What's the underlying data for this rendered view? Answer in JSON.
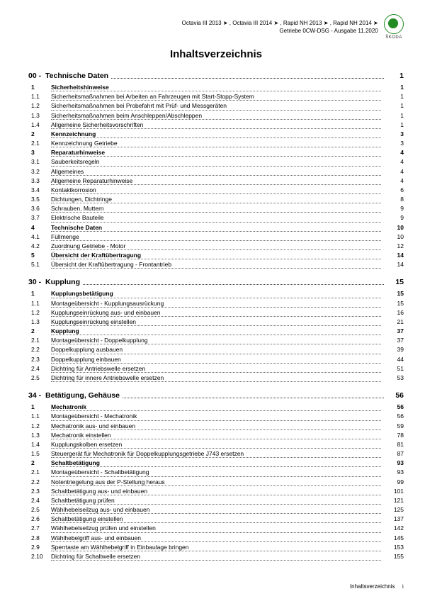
{
  "header": {
    "line1": "Octavia III 2013 ➤ , Octavia III 2014 ➤ , Rapid NH 2013 ➤ , Rapid NH 2014 ➤",
    "line2": "Getriebe 0CW-DSG - Ausgabe 11.2020",
    "brand": "ŠKODA"
  },
  "title": "Inhaltsverzeichnis",
  "footer": {
    "label": "Inhaltsverzeichnis",
    "page": "i"
  },
  "sections": [
    {
      "num": "00 -",
      "title": "Technische Daten",
      "page": "1",
      "items": [
        {
          "l": 1,
          "n": "1",
          "t": "Sicherheitshinweise",
          "p": "1"
        },
        {
          "l": 2,
          "n": "1.1",
          "t": "Sicherheitsmaßnahmen bei Arbeiten an Fahrzeugen mit Start-Stopp-System",
          "p": "1"
        },
        {
          "l": 2,
          "n": "1.2",
          "t": "Sicherheitsmaßnahmen bei Probefahrt mit Prüf- und Messgeräten",
          "p": "1"
        },
        {
          "l": 2,
          "n": "1.3",
          "t": "Sicherheitsmaßnahmen beim Anschleppen/Abschleppen",
          "p": "1"
        },
        {
          "l": 2,
          "n": "1.4",
          "t": "Allgemeine Sicherheitsvorschriften",
          "p": "1"
        },
        {
          "l": 1,
          "n": "2",
          "t": "Kennzeichnung",
          "p": "3"
        },
        {
          "l": 2,
          "n": "2.1",
          "t": "Kennzeichnung Getriebe",
          "p": "3"
        },
        {
          "l": 1,
          "n": "3",
          "t": "Reparaturhinweise",
          "p": "4"
        },
        {
          "l": 2,
          "n": "3.1",
          "t": "Sauberkeitsregeln",
          "p": "4"
        },
        {
          "l": 2,
          "n": "3.2",
          "t": "Allgemeines",
          "p": "4"
        },
        {
          "l": 2,
          "n": "3.3",
          "t": "Allgemeine Reparaturhinweise",
          "p": "4"
        },
        {
          "l": 2,
          "n": "3.4",
          "t": "Kontaktkorrosion",
          "p": "6"
        },
        {
          "l": 2,
          "n": "3.5",
          "t": "Dichtungen, Dichtringe",
          "p": "8"
        },
        {
          "l": 2,
          "n": "3.6",
          "t": "Schrauben, Muttern",
          "p": "9"
        },
        {
          "l": 2,
          "n": "3.7",
          "t": "Elektrische Bauteile",
          "p": "9"
        },
        {
          "l": 1,
          "n": "4",
          "t": "Technische Daten",
          "p": "10"
        },
        {
          "l": 2,
          "n": "4.1",
          "t": "Füllmenge",
          "p": "10"
        },
        {
          "l": 2,
          "n": "4.2",
          "t": "Zuordnung Getriebe - Motor",
          "p": "12"
        },
        {
          "l": 1,
          "n": "5",
          "t": "Übersicht der Kraftübertragung",
          "p": "14"
        },
        {
          "l": 2,
          "n": "5.1",
          "t": "Übersicht der Kraftübertragung - Frontantrieb",
          "p": "14"
        }
      ]
    },
    {
      "num": "30 -",
      "title": "Kupplung",
      "page": "15",
      "items": [
        {
          "l": 1,
          "n": "1",
          "t": "Kupplungsbetätigung",
          "p": "15"
        },
        {
          "l": 2,
          "n": "1.1",
          "t": "Montageübersicht - Kupplungsausrückung",
          "p": "15"
        },
        {
          "l": 2,
          "n": "1.2",
          "t": "Kupplungseinrückung aus- und einbauen",
          "p": "16"
        },
        {
          "l": 2,
          "n": "1.3",
          "t": "Kupplungseinrückung einstellen",
          "p": "21"
        },
        {
          "l": 1,
          "n": "2",
          "t": "Kupplung",
          "p": "37"
        },
        {
          "l": 2,
          "n": "2.1",
          "t": "Montageübersicht - Doppelkupplung",
          "p": "37"
        },
        {
          "l": 2,
          "n": "2.2",
          "t": "Doppelkupplung ausbauen",
          "p": "39"
        },
        {
          "l": 2,
          "n": "2.3",
          "t": "Doppelkupplung einbauen",
          "p": "44"
        },
        {
          "l": 2,
          "n": "2.4",
          "t": "Dichtring für Antriebswelle ersetzen",
          "p": "51"
        },
        {
          "l": 2,
          "n": "2.5",
          "t": "Dichtring für innere Antriebswelle ersetzen",
          "p": "53"
        }
      ]
    },
    {
      "num": "34 -",
      "title": "Betätigung, Gehäuse",
      "page": "56",
      "items": [
        {
          "l": 1,
          "n": "1",
          "t": "Mechatronik",
          "p": "56"
        },
        {
          "l": 2,
          "n": "1.1",
          "t": "Montageübersicht - Mechatronik",
          "p": "56"
        },
        {
          "l": 2,
          "n": "1.2",
          "t": "Mechatronik aus- und einbauen",
          "p": "59"
        },
        {
          "l": 2,
          "n": "1.3",
          "t": "Mechatronik einstellen",
          "p": "78"
        },
        {
          "l": 2,
          "n": "1.4",
          "t": "Kupplungskolben ersetzen",
          "p": "81"
        },
        {
          "l": 2,
          "n": "1.5",
          "t": "Steuergerät für Mechatronik für Doppelkupplungsgetriebe J743 ersetzen",
          "p": "87"
        },
        {
          "l": 1,
          "n": "2",
          "t": "Schaltbetätigung",
          "p": "93"
        },
        {
          "l": 2,
          "n": "2.1",
          "t": "Montageübersicht - Schaltbetätigung",
          "p": "93"
        },
        {
          "l": 2,
          "n": "2.2",
          "t": "Notentriegelung aus der P-Stellung heraus",
          "p": "99"
        },
        {
          "l": 2,
          "n": "2.3",
          "t": "Schaltbetätigung aus- und einbauen",
          "p": "101"
        },
        {
          "l": 2,
          "n": "2.4",
          "t": "Schaltbetätigung prüfen",
          "p": "121"
        },
        {
          "l": 2,
          "n": "2.5",
          "t": "Wählhebelseilzug aus- und einbauen",
          "p": "125"
        },
        {
          "l": 2,
          "n": "2.6",
          "t": "Schaltbetätigung einstellen",
          "p": "137"
        },
        {
          "l": 2,
          "n": "2.7",
          "t": "Wählhebelseilzug prüfen und einstellen",
          "p": "142"
        },
        {
          "l": 2,
          "n": "2.8",
          "t": "Wählhebelgriff aus- und einbauen",
          "p": "145"
        },
        {
          "l": 2,
          "n": "2.9",
          "t": "Sperrtaste am Wählhebelgriff in Einbaulage bringen",
          "p": "153"
        },
        {
          "l": 2,
          "n": "2.10",
          "t": "Dichtring für Schaltwelle ersetzen",
          "p": "155"
        }
      ]
    }
  ]
}
